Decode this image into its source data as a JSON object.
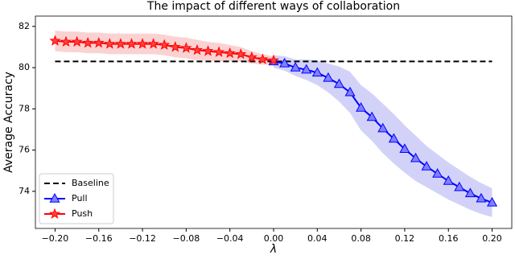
{
  "chart_data": {
    "type": "line",
    "title": "The impact of different ways of collaboration",
    "x_label": "λ",
    "y_label": "Average Accuracy",
    "xlim": [
      -0.218,
      0.218
    ],
    "ylim": [
      72.2,
      82.5
    ],
    "xticks": [
      {
        "value": -0.2,
        "label": "−0.20"
      },
      {
        "value": -0.16,
        "label": "−0.16"
      },
      {
        "value": -0.12,
        "label": "−0.12"
      },
      {
        "value": -0.08,
        "label": "−0.08"
      },
      {
        "value": -0.04,
        "label": "−0.04"
      },
      {
        "value": 0,
        "label": "0.00"
      },
      {
        "value": 0.04,
        "label": "0.04"
      },
      {
        "value": 0.08,
        "label": "0.08"
      },
      {
        "value": 0.12,
        "label": "0.12"
      },
      {
        "value": 0.16,
        "label": "0.16"
      },
      {
        "value": 0.2,
        "label": "0.20"
      }
    ],
    "yticks": [
      74,
      76,
      78,
      80,
      82
    ],
    "legend": "lower left",
    "series": [
      {
        "name": "Baseline",
        "color": "#000000",
        "style": "dashed",
        "x": [
          -0.2,
          0.2
        ],
        "values": [
          80.3,
          80.3
        ]
      },
      {
        "name": "Pull",
        "color": "#0000ff",
        "marker": "triangle",
        "band_color": "#b4b4f5",
        "x": [
          0,
          0.01,
          0.02,
          0.03,
          0.04,
          0.05,
          0.06,
          0.07,
          0.08,
          0.09,
          0.1,
          0.11,
          0.12,
          0.13,
          0.14,
          0.15,
          0.16,
          0.17,
          0.18,
          0.19,
          0.2
        ],
        "values": [
          80.3,
          80.2,
          80.0,
          79.9,
          79.75,
          79.5,
          79.2,
          78.8,
          78.05,
          77.6,
          77.05,
          76.55,
          76.05,
          75.6,
          75.2,
          74.85,
          74.5,
          74.2,
          73.9,
          73.65,
          73.45
        ],
        "spread": [
          0.3,
          0.35,
          0.4,
          0.5,
          0.6,
          0.7,
          0.85,
          1.0,
          1.1,
          1.15,
          1.2,
          1.2,
          1.15,
          1.1,
          1.0,
          0.95,
          0.9,
          0.85,
          0.8,
          0.75,
          0.7
        ]
      },
      {
        "name": "Push",
        "color": "#ff0000",
        "marker": "star",
        "band_color": "#f8b4b4",
        "x": [
          -0.2,
          -0.19,
          -0.18,
          -0.17,
          -0.16,
          -0.15,
          -0.14,
          -0.13,
          -0.12,
          -0.11,
          -0.1,
          -0.09,
          -0.08,
          -0.07,
          -0.06,
          -0.05,
          -0.04,
          -0.03,
          -0.02,
          -0.01,
          0
        ],
        "values": [
          81.3,
          81.25,
          81.25,
          81.2,
          81.2,
          81.15,
          81.15,
          81.15,
          81.15,
          81.15,
          81.1,
          81.0,
          80.95,
          80.85,
          80.8,
          80.75,
          80.7,
          80.65,
          80.5,
          80.4,
          80.35
        ],
        "spread": [
          0.5,
          0.5,
          0.5,
          0.5,
          0.5,
          0.5,
          0.5,
          0.5,
          0.5,
          0.5,
          0.5,
          0.5,
          0.5,
          0.5,
          0.45,
          0.45,
          0.4,
          0.35,
          0.3,
          0.25,
          0.2
        ]
      }
    ]
  }
}
